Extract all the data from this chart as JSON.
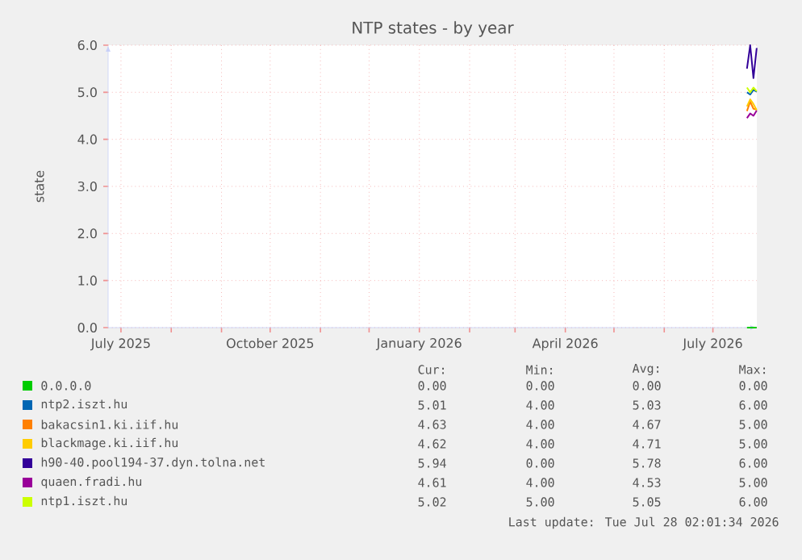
{
  "chart_data": {
    "type": "line",
    "title": "NTP states - by year",
    "ylabel": "state",
    "xlim": [
      "2025-06-23T02:00",
      "2026-07-28T02:00"
    ],
    "xticks": [
      {
        "value": "2025-07-01",
        "label": "July 2025"
      },
      {
        "value": "2025-08-01",
        "label": null
      },
      {
        "value": "2025-09-01",
        "label": null
      },
      {
        "value": "2025-10-01",
        "label": "October 2025"
      },
      {
        "value": "2025-11-01",
        "label": null
      },
      {
        "value": "2025-12-01",
        "label": null
      },
      {
        "value": "2026-01-01",
        "label": "January 2026"
      },
      {
        "value": "2026-02-01",
        "label": null
      },
      {
        "value": "2026-03-01",
        "label": null
      },
      {
        "value": "2026-04-01",
        "label": "April 2026"
      },
      {
        "value": "2026-05-01",
        "label": null
      },
      {
        "value": "2026-06-01",
        "label": null
      },
      {
        "value": "2026-07-01",
        "label": "July 2026"
      }
    ],
    "ylim": [
      0,
      6
    ],
    "yticks": [
      {
        "value": 0,
        "label": "0.0"
      },
      {
        "value": 1,
        "label": "1.0"
      },
      {
        "value": 2,
        "label": "2.0"
      },
      {
        "value": 3,
        "label": "3.0"
      },
      {
        "value": 4,
        "label": "4.0"
      },
      {
        "value": 5,
        "label": "5.0"
      },
      {
        "value": 6,
        "label": "6.0"
      }
    ],
    "grid": true,
    "legend": "bottom",
    "series": [
      {
        "name": "0.0.0.0",
        "color": "#00cc00",
        "x": [
          "2026-07-22",
          "2026-07-24",
          "2026-07-26",
          "2026-07-28"
        ],
        "values": [
          0,
          0,
          0,
          0
        ]
      },
      {
        "name": "ntp2.iszt.hu",
        "color": "#0066b3",
        "x": [
          "2026-07-22",
          "2026-07-24",
          "2026-07-26",
          "2026-07-28"
        ],
        "values": [
          5.0,
          4.95,
          5.05,
          5.01
        ]
      },
      {
        "name": "bakacsin1.ki.iif.hu",
        "color": "#ff8000",
        "x": [
          "2026-07-22",
          "2026-07-24",
          "2026-07-26",
          "2026-07-28"
        ],
        "values": [
          4.6,
          4.8,
          4.65,
          4.63
        ]
      },
      {
        "name": "blackmage.ki.iif.hu",
        "color": "#ffcc00",
        "x": [
          "2026-07-22",
          "2026-07-24",
          "2026-07-26",
          "2026-07-28"
        ],
        "values": [
          4.7,
          4.85,
          4.75,
          4.62
        ]
      },
      {
        "name": "h90-40.pool194-37.dyn.tolna.net",
        "color": "#330099",
        "x": [
          "2026-07-22",
          "2026-07-24",
          "2026-07-26",
          "2026-07-28"
        ],
        "values": [
          5.5,
          6.0,
          5.3,
          5.94
        ]
      },
      {
        "name": "quaen.fradi.hu",
        "color": "#990099",
        "x": [
          "2026-07-22",
          "2026-07-24",
          "2026-07-26",
          "2026-07-28"
        ],
        "values": [
          4.45,
          4.55,
          4.5,
          4.61
        ]
      },
      {
        "name": "ntp1.iszt.hu",
        "color": "#ccff00",
        "x": [
          "2026-07-22",
          "2026-07-24",
          "2026-07-26",
          "2026-07-28"
        ],
        "values": [
          5.1,
          5.0,
          5.1,
          5.02
        ]
      }
    ],
    "annotations": [
      "Cur:",
      "Min:",
      "Avg:",
      "Max:",
      "0.00",
      "0.00",
      "0.00",
      "0.00",
      "5.01",
      "4.00",
      "5.03",
      "6.00",
      "4.63",
      "4.00",
      "4.67",
      "5.00",
      "4.62",
      "4.00",
      "4.71",
      "5.00",
      "5.94",
      "0.00",
      "5.78",
      "6.00",
      "4.61",
      "4.00",
      "4.53",
      "5.00",
      "5.02",
      "5.00",
      "5.05",
      "6.00",
      "Last update: Tue Jul 28 02:01:34 2026"
    ]
  }
}
